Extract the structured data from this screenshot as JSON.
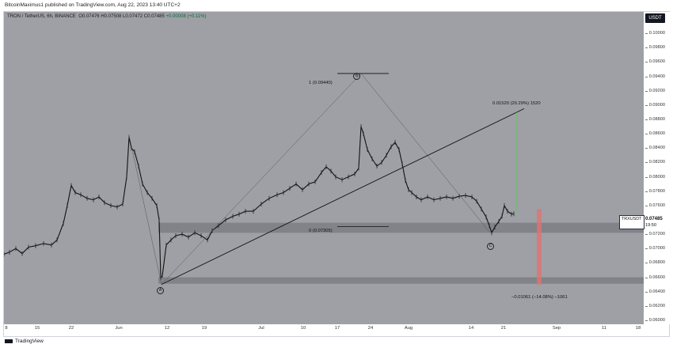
{
  "header": {
    "publish_line": "BitcoinMaximus1 published on TradingView.com, Aug 22, 2023 13:40 UTC+2"
  },
  "legend": {
    "symbol": "TRON / TetherUS, 6h, BINANCE",
    "o_label": "O",
    "o_val": "0.07476",
    "h_label": "H",
    "h_val": "0.07508",
    "l_label": "L",
    "l_val": "0.07472",
    "c_label": "C",
    "c_val": "0.07485",
    "change": "+0.00008 (+0.11%)"
  },
  "currency_badge": "USDT",
  "price_tag": {
    "ticker": "TRXUSDT",
    "price": "0.07485",
    "countdown": "19:50"
  },
  "y_ticks": [
    "0.10200",
    "0.10000",
    "0.09800",
    "0.09600",
    "0.09400",
    "0.09200",
    "0.09000",
    "0.08800",
    "0.08600",
    "0.08400",
    "0.08200",
    "0.08000",
    "0.07800",
    "0.07600",
    "0.07400",
    "0.07200",
    "0.07000",
    "0.06800",
    "0.06600",
    "0.06400",
    "0.06200",
    "0.06000"
  ],
  "x_ticks": [
    "8",
    "15",
    "22",
    "Jun",
    "12",
    "19",
    "Jul",
    "10",
    "17",
    "24",
    "Aug",
    "14",
    "21",
    "Sep",
    "11",
    "18"
  ],
  "annotations": {
    "fib_1": "1 (0.09440)",
    "fib_0": "0 (0.07305)",
    "long_target": "0.01520 (20.29%) 1520",
    "short_target": "−0.01061 (−14.08%) −1061",
    "wave_a": "A",
    "wave_b": "B",
    "wave_c": "C"
  },
  "footer": {
    "brand": "TradingView"
  },
  "colors": {
    "plot_bg": "#9ea0a6",
    "zone": "#7d7f85",
    "up": "#6dbf6b",
    "down": "#e0736f",
    "candle": "#111111"
  }
}
